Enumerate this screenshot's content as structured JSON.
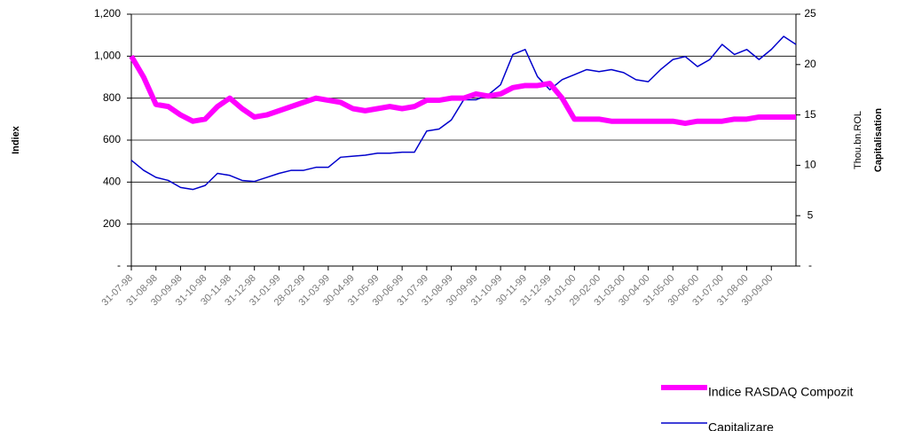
{
  "chart_data": {
    "type": "line",
    "categories": [
      "31-07-98",
      null,
      "31-08-98",
      null,
      "30-09-98",
      null,
      "31-10-98",
      null,
      "30-11-98",
      null,
      "31-12-98",
      null,
      "31-01-99",
      null,
      "28-02-99",
      null,
      "31-03-99",
      null,
      "30-04-99",
      null,
      "31-05-99",
      null,
      "30-06-99",
      null,
      "31-07-99",
      null,
      "31-08-99",
      null,
      "30-09-99",
      null,
      "31-10-99",
      null,
      "30-11-99",
      null,
      "31-12-99",
      null,
      "31-01-00",
      null,
      "29-02-00",
      null,
      "31-03-00",
      null,
      "30-04-00",
      null,
      "31-05-00",
      null,
      "30-06-00",
      null,
      "31-07-00",
      null,
      "31-08-00",
      null,
      "30-09-00",
      null,
      null
    ],
    "series": [
      {
        "name": "Indice RASDAQ Compozit",
        "color": "#ff00ff",
        "values": [
          1000,
          900,
          770,
          760,
          720,
          690,
          700,
          760,
          800,
          750,
          710,
          720,
          740,
          760,
          780,
          800,
          790,
          780,
          750,
          740,
          750,
          760,
          750,
          760,
          790,
          790,
          800,
          800,
          820,
          810,
          820,
          850,
          860,
          860,
          870,
          800,
          700,
          700,
          700,
          690,
          690,
          690,
          690,
          690,
          690,
          680,
          690,
          690,
          690,
          700,
          700,
          710,
          710,
          710,
          710
        ]
      },
      {
        "name": "Capitalizare",
        "color": "#0000cc",
        "axis": "y2",
        "values": [
          10.5,
          9.5,
          8.8,
          8.5,
          7.8,
          7.6,
          8.0,
          9.2,
          9.0,
          8.5,
          8.4,
          8.8,
          9.2,
          9.5,
          9.5,
          9.8,
          9.8,
          10.8,
          10.9,
          11.0,
          11.2,
          11.2,
          11.3,
          11.3,
          13.4,
          13.6,
          14.5,
          16.5,
          16.5,
          17.0,
          18.0,
          21.0,
          21.5,
          18.8,
          17.5,
          18.5,
          19.0,
          19.5,
          19.3,
          19.5,
          19.2,
          18.5,
          18.3,
          19.5,
          20.5,
          20.8,
          19.8,
          20.5,
          22.0,
          21.0,
          21.5,
          20.5,
          21.5,
          22.8,
          22.0
        ]
      }
    ],
    "y_label": "Indiex",
    "y2_label": "Capitalisation",
    "y2_unit_label": "Thou.bn.ROL",
    "ylim": [
      0,
      1200
    ],
    "yticks": [
      {
        "value": 0,
        "label": "-"
      },
      200,
      400,
      600,
      800,
      {
        "value": 1000,
        "label": "1,000"
      },
      {
        "value": 1200,
        "label": "1,200"
      }
    ],
    "y2lim": [
      0,
      25
    ],
    "y2ticks": [
      {
        "value": 0,
        "label": "-"
      },
      5,
      10,
      15,
      20,
      25
    ],
    "grid": true,
    "legend": "bottom-right"
  }
}
